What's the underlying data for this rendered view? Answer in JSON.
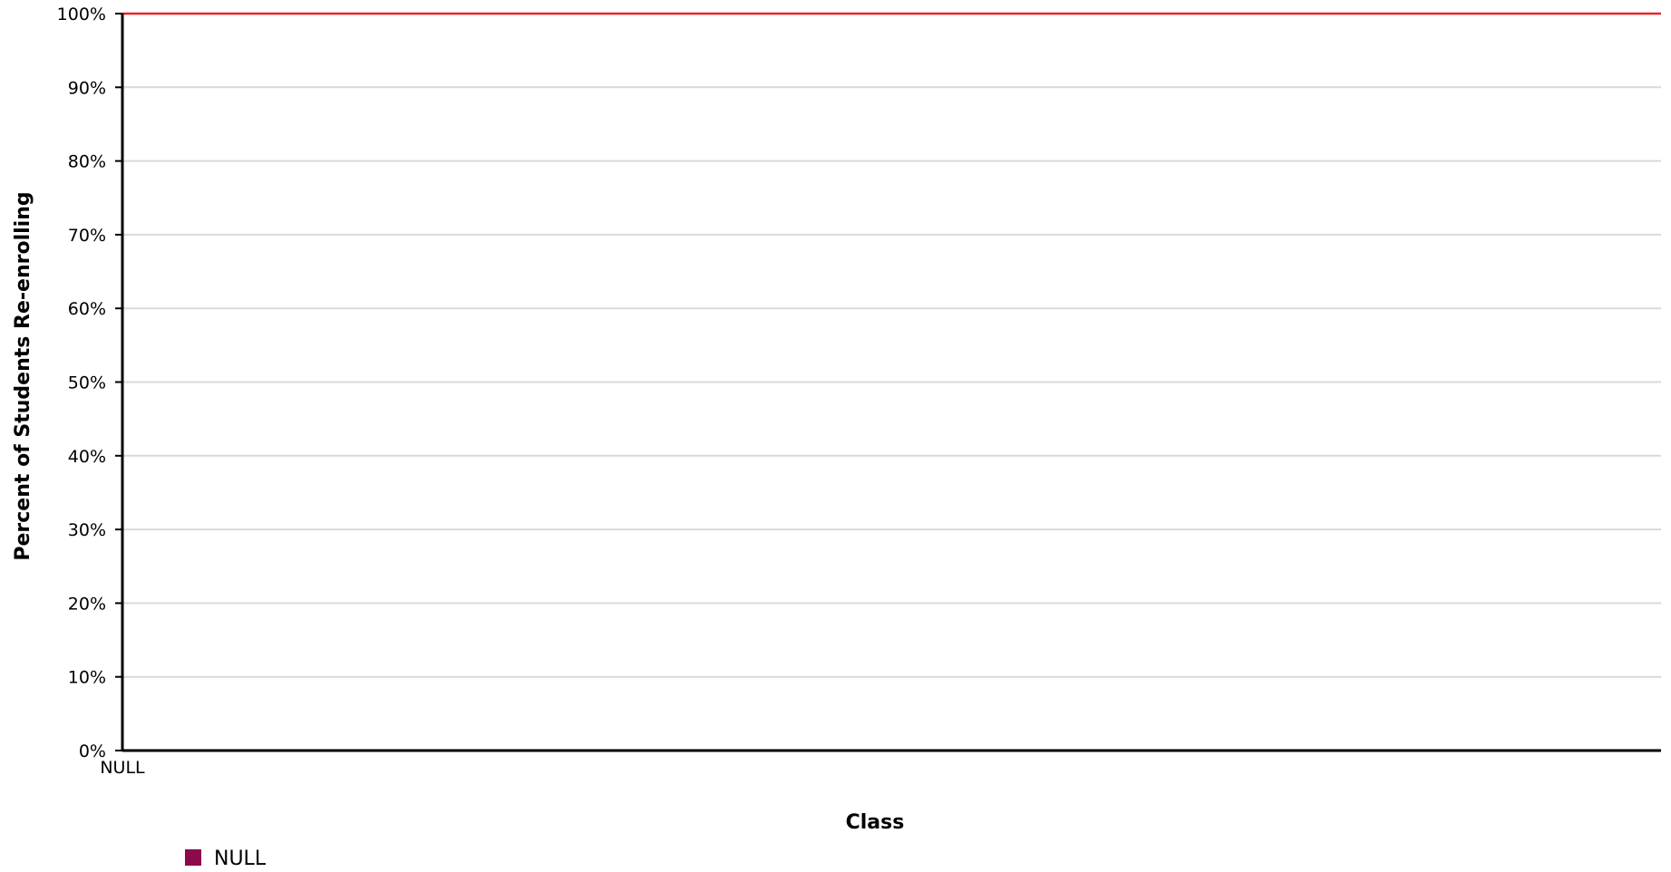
{
  "chart_data": {
    "type": "line",
    "title": "",
    "xlabel": "Class",
    "ylabel": "Percent of Students Re-enrolling",
    "categories": [
      "NULL"
    ],
    "series": [
      {
        "name": "NULL",
        "values": [
          100
        ],
        "color": "#e8242b",
        "legend_color": "#8c0a4b"
      }
    ],
    "ylim": [
      0,
      100
    ],
    "y_ticks": [
      0,
      10,
      20,
      30,
      40,
      50,
      60,
      70,
      80,
      90,
      100
    ],
    "y_tick_labels": [
      "0%",
      "10%",
      "20%",
      "30%",
      "40%",
      "50%",
      "60%",
      "70%",
      "80%",
      "90%",
      "100%"
    ],
    "grid": true,
    "legend_position": "bottom-left"
  },
  "colors": {
    "grid": "#d9d9d9",
    "axis": "#000000"
  }
}
